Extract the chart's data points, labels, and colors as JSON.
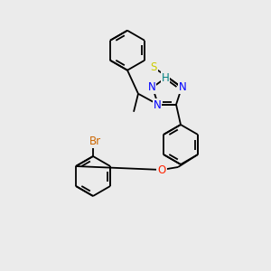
{
  "bg_color": "#ebebeb",
  "atom_colors": {
    "N": "#0000ff",
    "S": "#cccc00",
    "H_label": "#008080",
    "O": "#ff2200",
    "Br": "#cc6600",
    "C": "#000000"
  },
  "bond_color": "#000000",
  "font_size": 8.5,
  "lw": 1.3,
  "ring_r": 20,
  "triazole_r": 16
}
